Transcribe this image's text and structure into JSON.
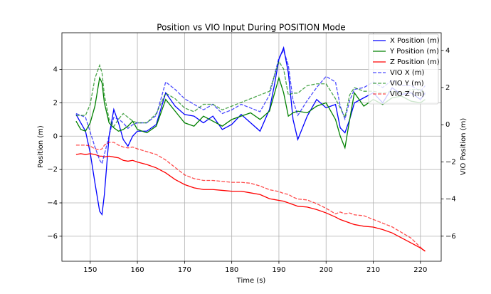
{
  "chart_data": {
    "type": "line",
    "title": "Position vs VIO Input During POSITION Mode",
    "xlabel": "Time (s)",
    "ylabel": "Position (m)",
    "y2label": "VIO Position (m)",
    "xlim": [
      144,
      224.4
    ],
    "ylim": [
      -7.5,
      6.2
    ],
    "y2lim": [
      -7.35,
      4.95
    ],
    "xticks": [
      150,
      160,
      170,
      180,
      190,
      200,
      210,
      220
    ],
    "yticks": [
      {
        "value": -6,
        "label": "−6"
      },
      {
        "value": -4,
        "label": "−4"
      },
      {
        "value": -2,
        "label": "−2"
      },
      0,
      2,
      4
    ],
    "y2ticks": [
      {
        "value": -6,
        "label": "−6"
      },
      {
        "value": -4,
        "label": "−4"
      },
      {
        "value": -2,
        "label": "−2"
      },
      0,
      2,
      4
    ],
    "grid": true,
    "legend": "upper right",
    "x": [
      147,
      148,
      149,
      150,
      151,
      152,
      152.5,
      153,
      154,
      155,
      156,
      157,
      158,
      159,
      160,
      162,
      164,
      166,
      168,
      170,
      172,
      174,
      176,
      178,
      180,
      182,
      184,
      186,
      188,
      189,
      190,
      191,
      192,
      193,
      194,
      196,
      198,
      200,
      202,
      203,
      204,
      205,
      206,
      208,
      210,
      212,
      214,
      216,
      218,
      220,
      221
    ],
    "series": [
      {
        "name": "X Position (m)",
        "color": "#0000ff",
        "linestyle": "solid",
        "alpha": 1,
        "values": [
          1.3,
          0.8,
          0.3,
          -1.0,
          -2.8,
          -4.5,
          -4.7,
          -3.5,
          0.0,
          1.6,
          0.8,
          -0.2,
          -0.6,
          0.0,
          0.3,
          0.3,
          0.7,
          2.6,
          1.8,
          1.3,
          1.2,
          0.8,
          1.2,
          0.4,
          0.7,
          1.3,
          0.8,
          0.3,
          1.6,
          3.0,
          4.6,
          5.3,
          3.8,
          1.0,
          -0.2,
          1.2,
          2.2,
          1.7,
          1.9,
          0.5,
          0.2,
          1.0,
          2.0,
          2.3,
          2.6,
          2.0,
          2.9,
          2.5,
          2.6,
          2.2,
          2.6
        ]
      },
      {
        "name": "Y Position (m)",
        "color": "#008000",
        "linestyle": "solid",
        "alpha": 1,
        "values": [
          0.9,
          0.4,
          0.3,
          0.8,
          1.8,
          3.5,
          3.2,
          2.0,
          0.8,
          0.5,
          0.3,
          0.4,
          0.6,
          0.9,
          0.4,
          0.2,
          0.6,
          2.2,
          1.5,
          0.8,
          0.6,
          1.2,
          0.9,
          0.6,
          1.0,
          1.2,
          1.4,
          1.0,
          1.5,
          2.5,
          3.5,
          2.6,
          1.2,
          1.4,
          1.5,
          1.4,
          1.8,
          2.0,
          1.0,
          0.0,
          -0.7,
          1.0,
          2.6,
          1.8,
          2.2,
          1.9,
          2.3,
          2.4,
          2.1,
          2.0,
          2.2
        ]
      },
      {
        "name": "Z Position (m)",
        "color": "#ff0000",
        "linestyle": "solid",
        "alpha": 1,
        "values": [
          -1.1,
          -1.05,
          -1.1,
          -1.05,
          -1.1,
          -1.2,
          -1.2,
          -1.25,
          -1.2,
          -1.25,
          -1.3,
          -1.45,
          -1.5,
          -1.45,
          -1.55,
          -1.7,
          -1.9,
          -2.2,
          -2.6,
          -2.9,
          -3.1,
          -3.2,
          -3.2,
          -3.25,
          -3.3,
          -3.3,
          -3.4,
          -3.5,
          -3.75,
          -3.8,
          -3.85,
          -3.9,
          -4.0,
          -4.1,
          -4.2,
          -4.25,
          -4.4,
          -4.6,
          -4.85,
          -5.0,
          -5.1,
          -5.2,
          -5.3,
          -5.4,
          -5.45,
          -5.6,
          -5.8,
          -6.1,
          -6.4,
          -6.7,
          -6.9
        ]
      },
      {
        "name": "VIO X (m)",
        "color": "#0000ff",
        "linestyle": "dashed",
        "alpha": 0.7,
        "axis": "y2",
        "values": [
          0.6,
          0.5,
          0.4,
          -0.4,
          -1.2,
          -1.9,
          -2.1,
          -1.6,
          -0.6,
          0.4,
          0.3,
          0.1,
          -0.2,
          0.0,
          0.1,
          0.1,
          0.5,
          2.3,
          1.9,
          1.4,
          1.1,
          0.8,
          1.1,
          0.6,
          0.8,
          1.1,
          0.9,
          0.7,
          1.6,
          2.6,
          3.6,
          4.0,
          3.2,
          1.3,
          0.5,
          1.3,
          2.0,
          2.6,
          2.3,
          1.0,
          0.3,
          1.3,
          1.9,
          2.0,
          2.3,
          2.0,
          2.4,
          2.1,
          2.1,
          1.8,
          2.1
        ]
      },
      {
        "name": "VIO Y (m)",
        "color": "#008000",
        "linestyle": "dashed",
        "alpha": 0.7,
        "axis": "y2",
        "values": [
          0.5,
          0.5,
          0.5,
          1.1,
          2.5,
          3.2,
          2.8,
          1.6,
          0.3,
          -0.1,
          0.3,
          0.6,
          0.4,
          0.2,
          0.1,
          0.1,
          0.6,
          1.7,
          1.4,
          0.9,
          0.7,
          1.1,
          1.1,
          0.8,
          1.0,
          1.2,
          1.4,
          1.6,
          1.8,
          2.6,
          3.4,
          3.0,
          1.6,
          1.7,
          1.7,
          2.1,
          2.2,
          2.2,
          1.4,
          0.9,
          0.4,
          1.6,
          2.0,
          1.8,
          1.8,
          1.7,
          1.8,
          1.7,
          1.9,
          1.9,
          1.6
        ]
      },
      {
        "name": "VIO Z (m)",
        "color": "#ff0000",
        "linestyle": "dashed",
        "alpha": 0.7,
        "axis": "y2",
        "values": [
          -1.1,
          -1.1,
          -1.1,
          -1.15,
          -1.3,
          -1.35,
          -1.3,
          -1.1,
          -0.95,
          -0.95,
          -1.1,
          -1.2,
          -1.25,
          -1.2,
          -1.3,
          -1.45,
          -1.6,
          -1.9,
          -2.3,
          -2.7,
          -2.9,
          -3.0,
          -3.0,
          -3.05,
          -3.1,
          -3.1,
          -3.15,
          -3.3,
          -3.5,
          -3.55,
          -3.6,
          -3.7,
          -3.75,
          -3.9,
          -4.0,
          -4.05,
          -4.25,
          -4.5,
          -4.8,
          -4.7,
          -4.8,
          -4.75,
          -4.85,
          -4.9,
          -5.1,
          -5.3,
          -5.5,
          -5.8,
          -6.1,
          -6.6,
          -6.8
        ]
      }
    ]
  }
}
